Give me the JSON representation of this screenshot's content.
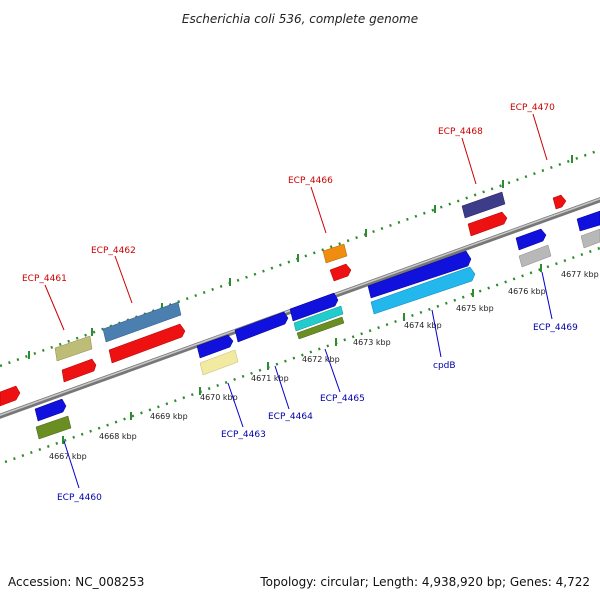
{
  "title": "Escherichia coli 536, complete genome",
  "accession": "Accession: NC_008253",
  "topology": "Topology: circular; Length: 4,938,920 bp; Genes: 4,722",
  "colors": {
    "backbone": "#8a8a8a",
    "dots": "#2e8b2e",
    "label_red": "#cc0000",
    "label_blue": "#0000aa",
    "callout_red": "#cc0000",
    "callout_blue": "#0000cc"
  },
  "ticks": [
    "4667 kbp",
    "4668 kbp",
    "4669 kbp",
    "4670 kbp",
    "4671 kbp",
    "4672 kbp",
    "4673 kbp",
    "4674 kbp",
    "4675 kbp",
    "4676 kbp",
    "4677 kbp"
  ],
  "gene_labels": {
    "ECP_4461": "ECP_4461",
    "ECP_4462": "ECP_4462",
    "ECP_4466": "ECP_4466",
    "ECP_4468": "ECP_4468",
    "ECP_4470": "ECP_4470",
    "ECP_4460": "ECP_4460",
    "ECP_4463": "ECP_4463",
    "ECP_4464": "ECP_4464",
    "ECP_4465": "ECP_4465",
    "cpdB": "cpdB",
    "ECP_4469": "ECP_4469"
  },
  "gene_colors": {
    "red": "#ee1111",
    "blue": "#1111dd",
    "olive": "#bdbd78",
    "steelblue": "#4a7fb0",
    "orange": "#f08c10",
    "navy": "#3c3c88",
    "khaki": "#f2eaa0",
    "cyan": "#22cccc",
    "darkolive": "#6b8e23",
    "skyblue": "#22b8ee",
    "gray": "#b8b8b8"
  }
}
